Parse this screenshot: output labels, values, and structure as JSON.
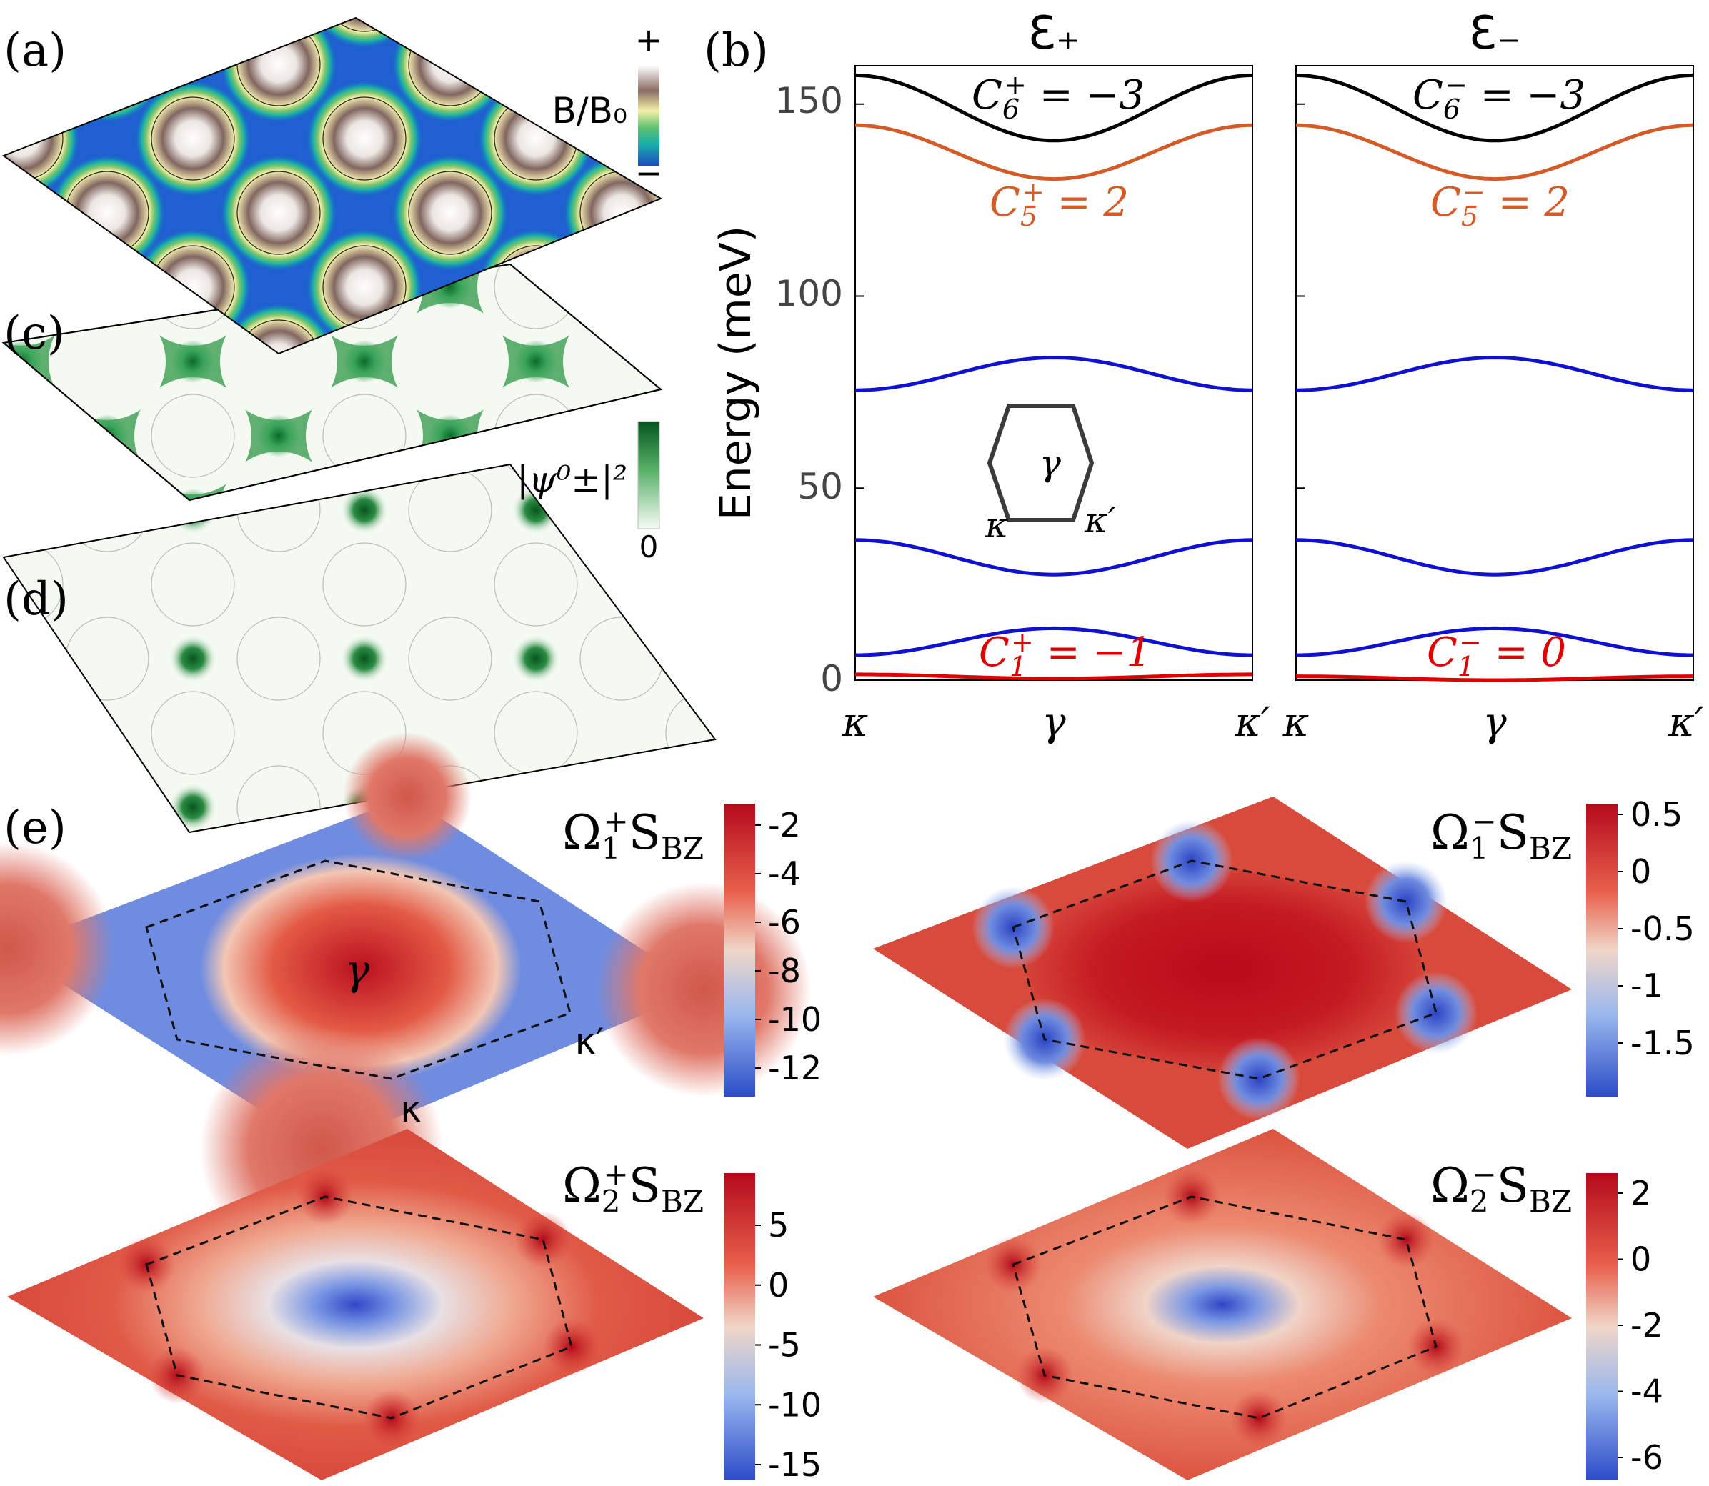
{
  "figure": {
    "panel_labels": {
      "a": "(a)",
      "b": "(b)",
      "c": "(c)",
      "d": "(d)",
      "e": "(e)"
    },
    "panel_a": {
      "colorbar_label": "B/B₀",
      "cb_max": "+",
      "cb_min": "−"
    },
    "panel_cd": {
      "colorbar_label": "|ψ⁰±|²",
      "cb_min": "0"
    },
    "inset": {
      "gamma": "γ",
      "kappa": "κ",
      "kappa_prime": "κ′"
    }
  },
  "chart_data": [
    {
      "type": "line",
      "title": "Ɛ₊",
      "xlabel": "",
      "ylabel": "Energy (meV)",
      "ylim": [
        0,
        160
      ],
      "yticks": [
        0,
        50,
        100,
        150
      ],
      "ytick_labels": [
        "0",
        "50",
        "100",
        "150"
      ],
      "xtick_labels": [
        "κ",
        "γ",
        "κ′"
      ],
      "x": [
        0,
        0.25,
        0.5,
        0.75,
        1
      ],
      "series": [
        {
          "name": "band 1",
          "color": "#e00000",
          "values": [
            1.5,
            0.9,
            0.4,
            0.9,
            1.5
          ]
        },
        {
          "name": "band 2",
          "color": "#1010d0",
          "values": [
            6.5,
            10.5,
            13.5,
            10.5,
            6.5
          ]
        },
        {
          "name": "band 3",
          "color": "#1010d0",
          "values": [
            36.5,
            32,
            27.5,
            32,
            36.5
          ]
        },
        {
          "name": "band 4",
          "color": "#1010d0",
          "values": [
            75.5,
            79.8,
            84,
            79.8,
            75.5
          ]
        },
        {
          "name": "band 5",
          "color": "#d45a28",
          "values": [
            144.5,
            137.5,
            130.5,
            137.5,
            144.5
          ]
        },
        {
          "name": "band 6",
          "color": "#000000",
          "values": [
            157.5,
            145.5,
            140.5,
            145.5,
            157.5
          ]
        }
      ],
      "annotations": {
        "c6": {
          "sym": "C",
          "sub": "6",
          "sup": "+",
          "rest": " = −3"
        },
        "c5": {
          "sym": "C",
          "sub": "5",
          "sup": "+",
          "rest": " = 2"
        },
        "c1": {
          "sym": "C",
          "sub": "1",
          "sup": "+",
          "rest": " = −1"
        }
      }
    },
    {
      "type": "line",
      "title": "Ɛ₋",
      "xlabel": "",
      "ylabel": "",
      "ylim": [
        0,
        160
      ],
      "xtick_labels": [
        "κ",
        "γ",
        "κ′"
      ],
      "x": [
        0,
        0.25,
        0.5,
        0.75,
        1
      ],
      "series": [
        {
          "name": "band 1",
          "color": "#e00000",
          "values": [
            1.0,
            0.5,
            0.0,
            0.5,
            1.0
          ]
        },
        {
          "name": "band 2",
          "color": "#1010d0",
          "values": [
            6.5,
            10.5,
            13.5,
            10.5,
            6.5
          ]
        },
        {
          "name": "band 3",
          "color": "#1010d0",
          "values": [
            36.5,
            32,
            27.5,
            32,
            36.5
          ]
        },
        {
          "name": "band 4",
          "color": "#1010d0",
          "values": [
            75.5,
            79.8,
            84,
            79.8,
            75.5
          ]
        },
        {
          "name": "band 5",
          "color": "#d45a28",
          "values": [
            144.5,
            137.5,
            130.5,
            137.5,
            144.5
          ]
        },
        {
          "name": "band 6",
          "color": "#000000",
          "values": [
            157.5,
            145.5,
            140.5,
            145.5,
            157.5
          ]
        }
      ],
      "annotations": {
        "c6": {
          "sym": "C",
          "sub": "6",
          "sup": "−",
          "rest": " = −3"
        },
        "c5": {
          "sym": "C",
          "sub": "5",
          "sup": "−",
          "rest": " = 2"
        },
        "c1": {
          "sym": "C",
          "sub": "1",
          "sup": "−",
          "rest": " = 0"
        }
      }
    },
    {
      "type": "heatmap",
      "title_sym": "Ω",
      "title_sub": "1",
      "title_sup": "+",
      "title_tail": "S",
      "title_tail_sub": "BZ",
      "colorbar_ticks": [
        "-2",
        "-4",
        "-6",
        "-8",
        "-10",
        "-12"
      ],
      "points": {
        "gamma": "γ",
        "kappa": "κ",
        "kappa_prime": "κ′"
      }
    },
    {
      "type": "heatmap",
      "title_sym": "Ω",
      "title_sub": "1",
      "title_sup": "−",
      "title_tail": "S",
      "title_tail_sub": "BZ",
      "colorbar_ticks": [
        "0.5",
        "0",
        "-0.5",
        "-1",
        "-1.5"
      ]
    },
    {
      "type": "heatmap",
      "title_sym": "Ω",
      "title_sub": "2",
      "title_sup": "+",
      "title_tail": "S",
      "title_tail_sub": "BZ",
      "colorbar_ticks": [
        "5",
        "0",
        "-5",
        "-10",
        "-15"
      ]
    },
    {
      "type": "heatmap",
      "title_sym": "Ω",
      "title_sub": "2",
      "title_sup": "−",
      "title_tail": "S",
      "title_tail_sub": "BZ",
      "colorbar_ticks": [
        "2",
        "0",
        "-2",
        "-4",
        "-6"
      ]
    }
  ]
}
